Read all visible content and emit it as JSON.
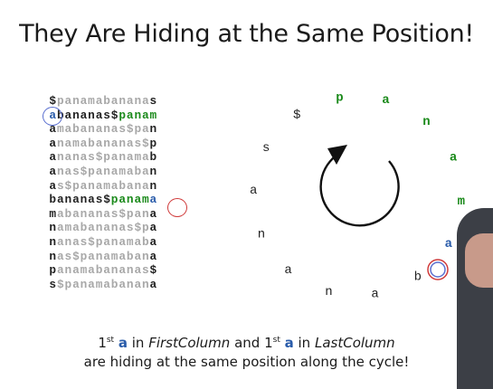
{
  "title": "They Are Hiding at the Same Position!",
  "bwt_matrix": {
    "rows": [
      "$panamabananas",
      "abananas$panam",
      "amabananas$pan",
      "anamabananas$p",
      "ananas$panamab",
      "anas$panamaban",
      "as$panamabanan",
      "bananas$panama",
      "mabananas$pana",
      "namabananas$pa",
      "nanas$panamaba",
      "nas$panamabana",
      "panamabananas$",
      "s$panamabanana"
    ]
  },
  "cycle": {
    "letters": [
      "$",
      "p",
      "a",
      "n",
      "a",
      "m",
      "a",
      "b",
      "a",
      "n",
      "a",
      "n",
      "a",
      "s"
    ],
    "circled_index": 6
  },
  "caption": {
    "ord1": "1",
    "sup1": "st",
    "letter1": "a",
    "text1": " in ",
    "col1": "FirstColumn",
    "text2": " and ",
    "ord2": "1",
    "sup2": "st",
    "letter2": "a",
    "text3": " in ",
    "col2": "LastColumn",
    "line2": "are hiding at the same position along the cycle!"
  },
  "colors": {
    "grey": "#a8a8a8",
    "black": "#222222",
    "green": "#1b8a1b",
    "blue": "#2a5caa",
    "red_circle": "#d03a3a",
    "blue_circle": "#5a6fd0"
  }
}
